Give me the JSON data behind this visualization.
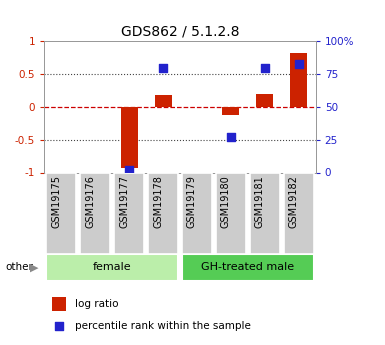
{
  "title": "GDS862 / 5.1.2.8",
  "samples": [
    "GSM19175",
    "GSM19176",
    "GSM19177",
    "GSM19178",
    "GSM19179",
    "GSM19180",
    "GSM19181",
    "GSM19182"
  ],
  "log_ratio": [
    0.0,
    0.0,
    -0.93,
    0.18,
    0.0,
    -0.13,
    0.2,
    0.82
  ],
  "percentile": [
    null,
    null,
    2,
    80,
    null,
    27,
    80,
    83
  ],
  "groups": [
    {
      "label": "female",
      "start": 0,
      "end": 3,
      "color": "#bbeeaa"
    },
    {
      "label": "GH-treated male",
      "start": 4,
      "end": 7,
      "color": "#55cc55"
    }
  ],
  "bar_color": "#cc2200",
  "dot_color": "#2222cc",
  "ylim_left": [
    -1,
    1
  ],
  "ylim_right": [
    0,
    100
  ],
  "yticks_left": [
    -1,
    -0.5,
    0,
    0.5,
    1
  ],
  "yticks_right": [
    0,
    25,
    50,
    75,
    100
  ],
  "ytick_labels_left": [
    "-1",
    "-0.5",
    "0",
    "0.5",
    "1"
  ],
  "ytick_labels_right": [
    "0",
    "25",
    "50",
    "75",
    "100%"
  ],
  "hlines_dotted": [
    0.5,
    -0.5
  ],
  "hline_zero_color": "#cc0000",
  "hline_dotted_color": "#444444",
  "legend_log": "log ratio",
  "legend_pct": "percentile rank within the sample",
  "other_label": "other",
  "background_color": "#ffffff",
  "bar_width": 0.5,
  "dot_size": 35,
  "title_fontsize": 10,
  "tick_fontsize": 7.5,
  "label_fontsize": 7,
  "group_fontsize": 8
}
